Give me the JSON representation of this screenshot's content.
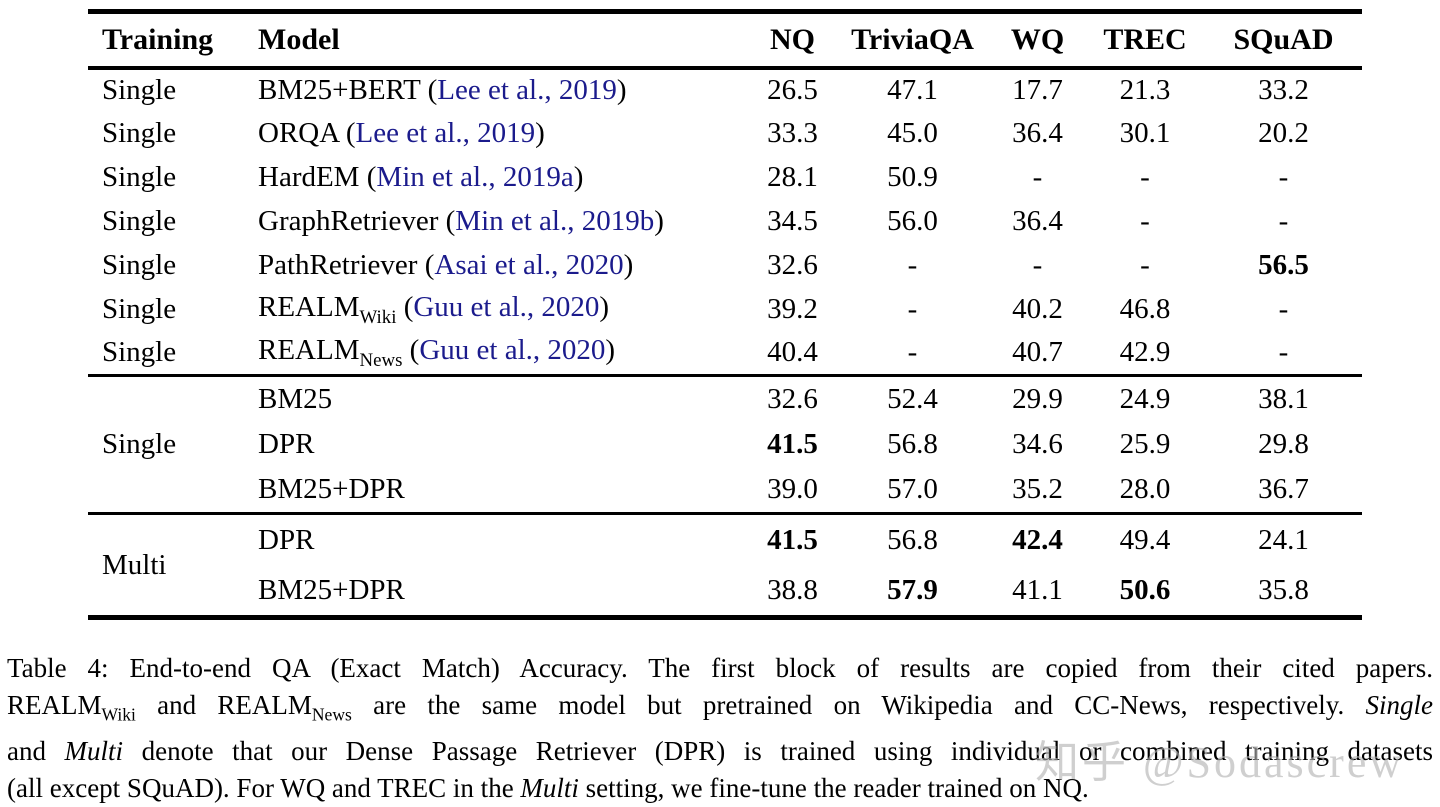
{
  "page": {
    "background": "#ffffff",
    "text_color": "#000000",
    "link_color": "#1b1b8c",
    "rule_color": "#000000",
    "watermark_color": "rgba(178,178,178,0.62)"
  },
  "table": {
    "columns": [
      {
        "key": "training",
        "label": "Training"
      },
      {
        "key": "model",
        "label": "Model"
      },
      {
        "key": "nq",
        "label": "NQ"
      },
      {
        "key": "triviaqa",
        "label": "TriviaQA"
      },
      {
        "key": "wq",
        "label": "WQ"
      },
      {
        "key": "trec",
        "label": "TREC"
      },
      {
        "key": "squad",
        "label": "SQuAD"
      }
    ],
    "blocks": [
      {
        "training_per_row": true,
        "rows": [
          {
            "training": "Single",
            "model": "BM25+BERT",
            "citation": "Lee et al., 2019",
            "values": [
              {
                "t": "26.5"
              },
              {
                "t": "47.1"
              },
              {
                "t": "17.7"
              },
              {
                "t": "21.3"
              },
              {
                "t": "33.2"
              }
            ]
          },
          {
            "training": "Single",
            "model": "ORQA",
            "citation": "Lee et al., 2019",
            "values": [
              {
                "t": "33.3"
              },
              {
                "t": "45.0"
              },
              {
                "t": "36.4"
              },
              {
                "t": "30.1"
              },
              {
                "t": "20.2"
              }
            ]
          },
          {
            "training": "Single",
            "model": "HardEM",
            "citation": "Min et al., 2019a",
            "values": [
              {
                "t": "28.1"
              },
              {
                "t": "50.9"
              },
              {
                "t": "-"
              },
              {
                "t": "-"
              },
              {
                "t": "-"
              }
            ]
          },
          {
            "training": "Single",
            "model": "GraphRetriever",
            "citation": "Min et al., 2019b",
            "values": [
              {
                "t": "34.5"
              },
              {
                "t": "56.0"
              },
              {
                "t": "36.4"
              },
              {
                "t": "-"
              },
              {
                "t": "-"
              }
            ]
          },
          {
            "training": "Single",
            "model": "PathRetriever",
            "citation": "Asai et al., 2020",
            "values": [
              {
                "t": "32.6"
              },
              {
                "t": "-"
              },
              {
                "t": "-"
              },
              {
                "t": "-"
              },
              {
                "t": "56.5",
                "b": true
              }
            ]
          },
          {
            "training": "Single",
            "model": "REALM",
            "subscript": "Wiki",
            "citation": "Guu et al., 2020",
            "values": [
              {
                "t": "39.2"
              },
              {
                "t": "-"
              },
              {
                "t": "40.2"
              },
              {
                "t": "46.8"
              },
              {
                "t": "-"
              }
            ]
          },
          {
            "training": "Single",
            "model": "REALM",
            "subscript": "News",
            "citation": "Guu et al., 2020",
            "values": [
              {
                "t": "40.4"
              },
              {
                "t": "-"
              },
              {
                "t": "40.7"
              },
              {
                "t": "42.9"
              },
              {
                "t": "-"
              }
            ]
          }
        ]
      },
      {
        "training": "Single",
        "rows": [
          {
            "model": "BM25",
            "values": [
              {
                "t": "32.6"
              },
              {
                "t": "52.4"
              },
              {
                "t": "29.9"
              },
              {
                "t": "24.9"
              },
              {
                "t": "38.1"
              }
            ]
          },
          {
            "model": "DPR",
            "values": [
              {
                "t": "41.5",
                "b": true
              },
              {
                "t": "56.8"
              },
              {
                "t": "34.6"
              },
              {
                "t": "25.9"
              },
              {
                "t": "29.8"
              }
            ]
          },
          {
            "model": "BM25+DPR",
            "values": [
              {
                "t": "39.0"
              },
              {
                "t": "57.0"
              },
              {
                "t": "35.2"
              },
              {
                "t": "28.0"
              },
              {
                "t": "36.7"
              }
            ]
          }
        ]
      },
      {
        "training": "Multi",
        "rows": [
          {
            "model": "DPR",
            "values": [
              {
                "t": "41.5",
                "b": true
              },
              {
                "t": "56.8"
              },
              {
                "t": "42.4",
                "b": true
              },
              {
                "t": "49.4"
              },
              {
                "t": "24.1"
              }
            ]
          },
          {
            "model": "BM25+DPR",
            "values": [
              {
                "t": "38.8"
              },
              {
                "t": "57.9",
                "b": true
              },
              {
                "t": "41.1"
              },
              {
                "t": "50.6",
                "b": true
              },
              {
                "t": "35.8"
              }
            ]
          }
        ]
      }
    ]
  },
  "caption": {
    "lines": [
      [
        {
          "t": "Table 4: End-to-end QA (Exact Match) Accuracy. The first block of results are copied from their cited papers."
        }
      ],
      [
        {
          "t": "REALM"
        },
        {
          "t": "Wiki",
          "style": "sub"
        },
        {
          "t": " and REALM"
        },
        {
          "t": "News",
          "style": "sub"
        },
        {
          "t": " are the same model but pretrained on Wikipedia and CC-News, respectively. "
        },
        {
          "t": "Single",
          "style": "italic"
        }
      ],
      [
        {
          "t": "and "
        },
        {
          "t": "Multi",
          "style": "italic"
        },
        {
          "t": " denote that our Dense Passage Retriever (DPR) is trained using individual or combined training datasets"
        }
      ],
      [
        {
          "t": "(all except SQuAD). For WQ and TREC in the "
        },
        {
          "t": "Multi",
          "style": "italic"
        },
        {
          "t": " setting, we fine-tune the reader trained on NQ."
        }
      ]
    ]
  },
  "watermark": {
    "text": "知乎 @Sodascrew"
  }
}
